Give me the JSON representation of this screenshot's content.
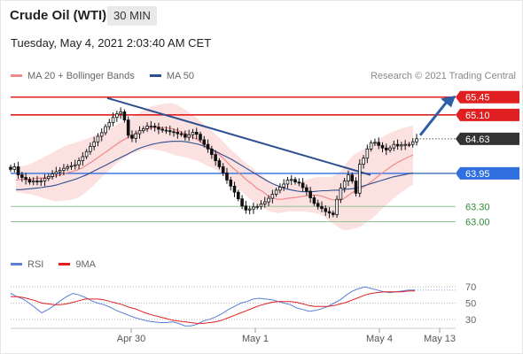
{
  "header": {
    "title": "Crude Oil (WTI)",
    "timeframe": "30 MIN",
    "datetime": "Tuesday, May 4, 2021 2:03:40 AM CET"
  },
  "legend": {
    "items": [
      {
        "label": "MA 20 + Bollinger Bands",
        "color": "#f08a8a"
      },
      {
        "label": "MA 50",
        "color": "#2e4f8f"
      }
    ],
    "copyright": "Research © 2021 Trading Central"
  },
  "rsi_legend": {
    "items": [
      {
        "label": "RSI",
        "color": "#5b7fd6"
      },
      {
        "label": "9MA",
        "color": "#e02020"
      }
    ]
  },
  "chart_data": [
    {
      "type": "candlestick",
      "role": "price",
      "x_ticks": [
        "Apr 30",
        "May 1",
        "May 4",
        "May 13"
      ],
      "ylim": [
        62.8,
        65.55
      ],
      "levels": [
        {
          "value": 65.45,
          "label": "65.45",
          "color": "#e02020",
          "kind": "resistance"
        },
        {
          "value": 65.1,
          "label": "65.10",
          "color": "#e02020",
          "kind": "resistance"
        },
        {
          "value": 64.63,
          "label": "64.63",
          "color": "#333333",
          "kind": "last"
        },
        {
          "value": 63.95,
          "label": "63.95",
          "color": "#2f6fe0",
          "kind": "pivot"
        },
        {
          "value": 63.3,
          "label": "63.30",
          "color": "#2e8b3a",
          "kind": "support"
        },
        {
          "value": 63.0,
          "label": "63.00",
          "color": "#2e8b3a",
          "kind": "support"
        }
      ],
      "close": [
        64.03,
        64.08,
        63.92,
        63.87,
        63.83,
        63.78,
        63.8,
        63.79,
        63.8,
        63.85,
        63.89,
        63.94,
        63.98,
        64.01,
        64.05,
        64.08,
        64.1,
        64.12,
        64.2,
        64.28,
        64.38,
        64.48,
        64.57,
        64.68,
        64.75,
        64.87,
        64.95,
        65.05,
        65.12,
        65.16,
        65.0,
        64.7,
        64.64,
        64.73,
        64.79,
        64.83,
        64.88,
        64.88,
        64.86,
        64.82,
        64.8,
        64.79,
        64.77,
        64.76,
        64.73,
        64.72,
        64.66,
        64.71,
        64.76,
        64.72,
        64.61,
        64.52,
        64.43,
        64.32,
        64.2,
        64.08,
        63.96,
        63.82,
        63.7,
        63.58,
        63.45,
        63.31,
        63.23,
        63.25,
        63.29,
        63.3,
        63.35,
        63.39,
        63.46,
        63.54,
        63.62,
        63.68,
        63.74,
        63.82,
        63.83,
        63.78,
        63.76,
        63.67,
        63.6,
        63.47,
        63.36,
        63.3,
        63.26,
        63.2,
        63.17,
        63.14,
        63.44,
        63.66,
        63.8,
        63.92,
        63.8,
        63.56,
        64.13,
        64.25,
        64.43,
        64.55,
        64.56,
        64.5,
        64.45,
        64.41,
        64.45,
        64.52,
        64.49,
        64.51,
        64.52,
        64.52,
        64.57,
        64.63
      ],
      "ma20": [
        63.82,
        63.83,
        63.83,
        63.84,
        63.85,
        63.86,
        63.87,
        63.88,
        63.9,
        63.93,
        63.96,
        63.98,
        64.01,
        64.05,
        64.11,
        64.17,
        64.24,
        64.31,
        64.38,
        64.45,
        64.52,
        64.59,
        64.64,
        64.7,
        64.74,
        64.79,
        64.82,
        64.85,
        64.85,
        64.85,
        64.85,
        64.83,
        64.8,
        64.76,
        64.72,
        64.67,
        64.62,
        64.55,
        64.48,
        64.42,
        64.35,
        64.27,
        64.17,
        64.07,
        63.99,
        63.9,
        63.81,
        63.74,
        63.65,
        63.6,
        63.52,
        63.47,
        63.44,
        63.44,
        63.46,
        63.47,
        63.48,
        63.5,
        63.51,
        63.52,
        63.52,
        63.5,
        63.46,
        63.43,
        63.42,
        63.44,
        63.51,
        63.58,
        63.62,
        63.67,
        63.74,
        63.81,
        63.89,
        63.97,
        64.04,
        64.11,
        64.17,
        64.22,
        64.27,
        64.31
      ],
      "ma50": [
        63.63,
        63.63,
        63.64,
        63.65,
        63.66,
        63.67,
        63.69,
        63.7,
        63.72,
        63.75,
        63.78,
        63.81,
        63.84,
        63.88,
        63.92,
        63.97,
        64.02,
        64.07,
        64.12,
        64.17,
        64.22,
        64.27,
        64.32,
        64.37,
        64.42,
        64.46,
        64.49,
        64.52,
        64.54,
        64.56,
        64.57,
        64.58,
        64.58,
        64.58,
        64.57,
        64.55,
        64.53,
        64.5,
        64.46,
        64.42,
        64.37,
        64.32,
        64.27,
        64.22,
        64.16,
        64.1,
        64.04,
        63.98,
        63.92,
        63.86,
        63.8,
        63.75,
        63.71,
        63.67,
        63.64,
        63.62,
        63.6,
        63.59,
        63.59,
        63.59,
        63.6,
        63.61,
        63.61,
        63.62,
        63.62,
        63.63,
        63.64,
        63.65,
        63.67,
        63.7,
        63.73,
        63.76,
        63.79,
        63.82,
        63.85,
        63.88,
        63.9,
        63.92,
        63.94,
        63.96
      ]
    },
    {
      "type": "line",
      "role": "rsi",
      "ylim": [
        20,
        80
      ],
      "y_ticks": [
        70,
        50,
        30
      ],
      "series": [
        {
          "name": "RSI",
          "color": "#5b7fd6",
          "values": [
            62,
            58,
            55,
            50,
            44,
            38,
            42,
            47,
            53,
            58,
            62,
            60,
            57,
            53,
            50,
            48,
            45,
            41,
            38,
            35,
            32,
            30,
            28,
            27,
            26,
            26,
            27,
            25,
            22,
            22,
            24,
            28,
            30,
            33,
            37,
            42,
            46,
            50,
            52,
            55,
            56,
            55,
            54,
            52,
            50,
            48,
            44,
            42,
            40,
            41,
            43,
            46,
            50,
            54,
            60,
            65,
            68,
            70,
            68,
            66,
            64,
            63,
            64,
            65,
            66,
            66
          ]
        },
        {
          "name": "9MA",
          "color": "#e02020",
          "values": [
            58,
            58,
            57,
            55,
            53,
            50,
            49,
            48,
            48,
            49,
            51,
            53,
            55,
            55,
            55,
            54,
            52,
            50,
            48,
            45,
            43,
            40,
            37,
            35,
            33,
            31,
            29,
            28,
            27,
            26,
            25,
            25,
            26,
            27,
            29,
            32,
            35,
            38,
            41,
            44,
            47,
            49,
            51,
            52,
            52,
            52,
            51,
            49,
            47,
            46,
            46,
            46,
            47,
            49,
            51,
            54,
            57,
            60,
            62,
            63,
            64,
            64,
            64,
            64,
            65,
            65
          ]
        }
      ]
    }
  ]
}
